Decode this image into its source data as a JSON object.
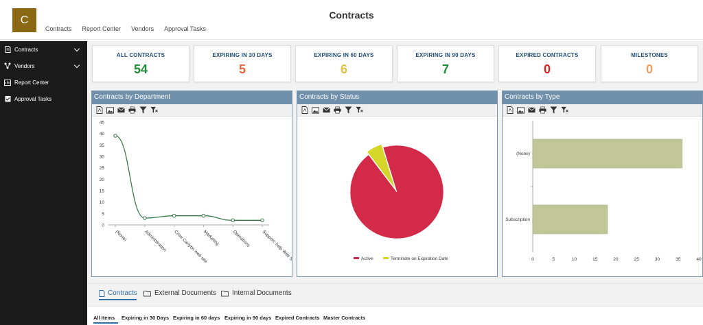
{
  "header": {
    "logo_letter": "C",
    "title": "Contracts",
    "nav": [
      "Contracts",
      "Report Center",
      "Vendors",
      "Approval Tasks"
    ]
  },
  "sidebar": {
    "items": [
      {
        "label": "Contracts",
        "icon": "document-icon",
        "expandable": true
      },
      {
        "label": "Vendors",
        "icon": "network-icon",
        "expandable": true
      },
      {
        "label": "Report Center",
        "icon": "report-icon",
        "expandable": false
      },
      {
        "label": "Approval Tasks",
        "icon": "task-icon",
        "expandable": false
      }
    ]
  },
  "kpis": [
    {
      "label": "ALL CONTRACTS",
      "value": "54",
      "color": "#1e8a3a"
    },
    {
      "label": "EXPIRING IN 30 DAYS",
      "value": "5",
      "color": "#e8663a"
    },
    {
      "label": "EXPIRING IN 60 DAYS",
      "value": "6",
      "color": "#e6c03a"
    },
    {
      "label": "EXPIRING IN 90 DAYS",
      "value": "7",
      "color": "#1e8a3a"
    },
    {
      "label": "EXPIRED CONTRACTS",
      "value": "0",
      "color": "#e0201c"
    },
    {
      "label": "MILESTONES",
      "value": "0",
      "color": "#f0a060"
    }
  ],
  "panels": {
    "department": {
      "title": "Contracts by Department"
    },
    "status": {
      "title": "Contracts by Status"
    },
    "type": {
      "title": "Contracts by Type"
    }
  },
  "toolbar_icons": [
    "pdf-icon",
    "image-icon",
    "email-icon",
    "print-icon",
    "filter-icon",
    "clear-filter-icon"
  ],
  "chart_data": [
    {
      "type": "line",
      "title": "Contracts by Department",
      "categories": [
        "(None)",
        "Administration",
        "Crow Canyon web site",
        "Marketing",
        "Operations",
        "Support: help Web Site"
      ],
      "values": [
        39,
        3,
        4,
        4,
        2,
        2
      ],
      "ylim": [
        0,
        45
      ],
      "yticks": [
        0,
        5,
        10,
        15,
        20,
        25,
        30,
        35,
        40,
        45
      ],
      "line_color": "#3a7a4a"
    },
    {
      "type": "pie",
      "title": "Contracts by Status",
      "slices": [
        {
          "label": "Active",
          "value": 51,
          "color": "#d42a4a"
        },
        {
          "label": "Terminate on Expiration Date",
          "value": 3,
          "color": "#d6d62a"
        }
      ],
      "legend": "bottom"
    },
    {
      "type": "bar",
      "orientation": "horizontal",
      "title": "Contracts by Type",
      "categories": [
        "(None)",
        "Subscription"
      ],
      "values": [
        36,
        18
      ],
      "xlim": [
        0,
        40
      ],
      "xticks": [
        0,
        5,
        10,
        15,
        20,
        25,
        30,
        35,
        40
      ],
      "bar_color": "#c2c79a"
    }
  ],
  "tabs": [
    {
      "label": "Contracts",
      "active": true
    },
    {
      "label": "External Documents",
      "active": false
    },
    {
      "label": "Internal Documents",
      "active": false
    }
  ],
  "views": [
    "All Items",
    "Expiring in 30 Days",
    "Expiring in 60 days",
    "Expiring in 90 days",
    "Expired Contracts",
    "Master Contracts"
  ]
}
